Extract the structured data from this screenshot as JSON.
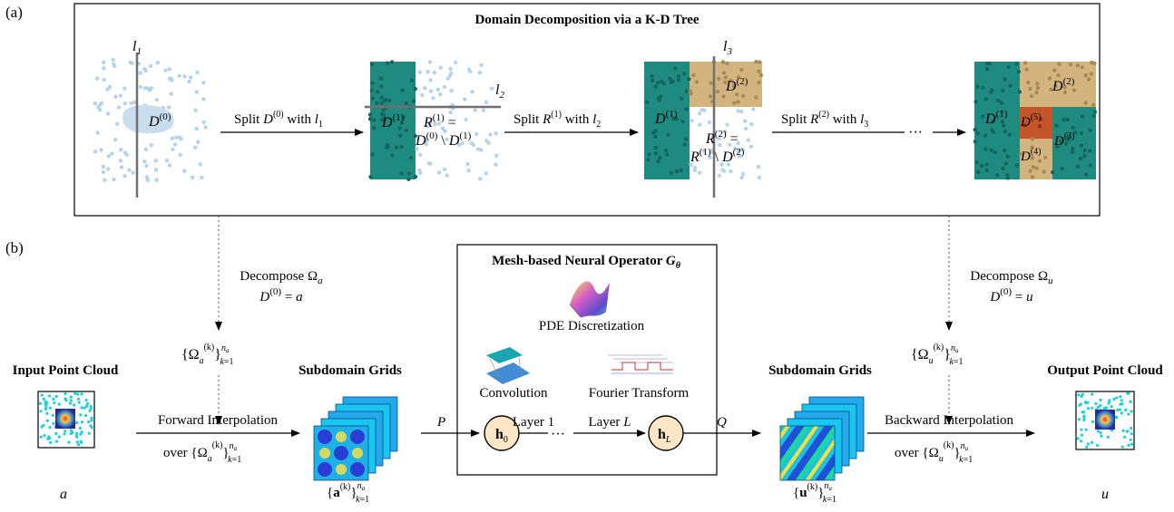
{
  "panel_a": {
    "tag": "(a)",
    "title": "Domain Decomposition via a K-D Tree",
    "split_1": {
      "label": "Split D(0) with l1",
      "prefix": "Split ",
      "d": "D",
      "sup": "(0)",
      "with": " with ",
      "l": "l",
      "sub": "1"
    },
    "split_2": {
      "label": "Split R(1) with l2",
      "prefix": "Split ",
      "d": "R",
      "sup": "(1)",
      "with": " with ",
      "l": "l",
      "sub": "2"
    },
    "split_3": {
      "label": "Split R(2) with l3",
      "prefix": "Split ",
      "d": "R",
      "sup": "(2)",
      "with": " with ",
      "l": "l",
      "sub": "3"
    },
    "ellipsis": "···",
    "stage1": {
      "line_label": "l1",
      "region": "D(0)"
    },
    "stage2": {
      "line_label": "l2",
      "left": "D(1)",
      "remainder_top": "R(1) =",
      "remainder_bottom": "D(0) \\ D(1)"
    },
    "stage3": {
      "line_label": "l3",
      "left": "D(1)",
      "top": "D(2)",
      "remainder_top": "R(2) =",
      "remainder_bottom": "R(1) \\ D(2)"
    },
    "stage4": {
      "d1": "D(1)",
      "d2": "D(2)",
      "d3": "D(3)",
      "d4": "D(4)",
      "d5": "D(5)"
    }
  },
  "panel_b": {
    "tag": "(b)",
    "decompose_a": {
      "line1": "Decompose Ωa",
      "line2": "D(0) = a"
    },
    "decompose_u": {
      "line1": "Decompose Ωu",
      "line2": "D(0) = u"
    },
    "omega_a_set": "{Ωa(k)} k=1..na",
    "omega_u_set": "{Ωu(k)} k=1..nu",
    "input_title": "Input Point Cloud",
    "input_symbol": "a",
    "subdomain_title_left": "Subdomain Grids",
    "subdomain_title_right": "Subdomain Grids",
    "output_title": "Output Point Cloud",
    "output_symbol": "u",
    "forward_interp": "Forward Interpolation",
    "forward_over": "over {Ωa(k)} k=1..na",
    "backward_interp": "Backward Interpolation",
    "backward_over": "over {Ωu(k)} k=1..nu",
    "a_set": "{a(k)} k=1..na",
    "u_set": "{u(k)} k=1..nu",
    "operator": {
      "title": "Mesh-based Neural Operator Gθ",
      "pde": "PDE Discretization",
      "conv": "Convolution",
      "fourier": "Fourier Transform",
      "P": "P",
      "Q": "Q",
      "h0": "h0",
      "hL": "hL",
      "layer1": "Layer 1",
      "layerL": "Layer L",
      "dots": "···"
    }
  },
  "colors": {
    "teal": "#1f8a80",
    "tan": "#d4b47e",
    "rust": "#c4542a",
    "dot": "#b7d3ea",
    "cyan": "#19d1d6",
    "node_fill": "#fbe7c6",
    "grid_blue": "#1f8fe6"
  }
}
